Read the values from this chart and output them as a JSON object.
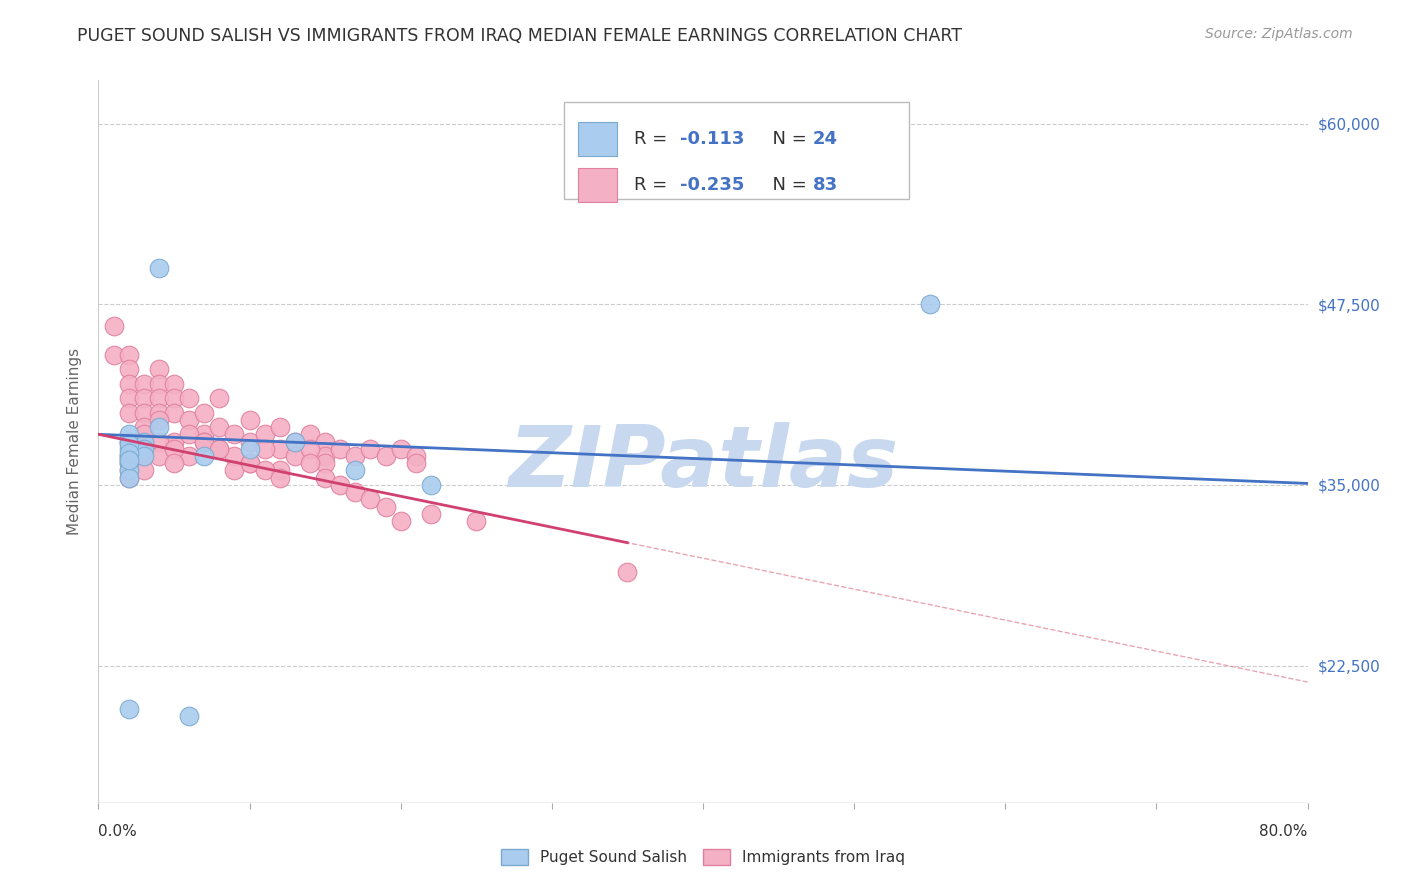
{
  "title": "PUGET SOUND SALISH VS IMMIGRANTS FROM IRAQ MEDIAN FEMALE EARNINGS CORRELATION CHART",
  "source": "Source: ZipAtlas.com",
  "ylabel": "Median Female Earnings",
  "ylim": [
    13000,
    63000
  ],
  "xlim": [
    0.0,
    0.8
  ],
  "ytick_vals": [
    22500,
    35000,
    47500,
    60000
  ],
  "ytick_labels": [
    "$22,500",
    "$35,000",
    "$47,500",
    "$60,000"
  ],
  "series1_label": "Puget Sound Salish",
  "series1_R": "-0.113",
  "series1_N": "24",
  "series1_color": "#aaccee",
  "series1_edge": "#7aaad0",
  "series2_label": "Immigrants from Iraq",
  "series2_R": "-0.235",
  "series2_N": "83",
  "series2_color": "#f4b0c4",
  "series2_edge": "#e080a0",
  "blue_line_color": "#4472c4",
  "pink_line_color": "#d04070",
  "diag_line_color": "#e08090",
  "watermark": "ZIPatlas",
  "watermark_color": "#c8d8ee",
  "background_color": "#ffffff",
  "legend_R_color": "#4472c4",
  "legend_N_color": "#4472c4",
  "series1_x": [
    0.04,
    0.02,
    0.02,
    0.02,
    0.02,
    0.02,
    0.02,
    0.02,
    0.03,
    0.03,
    0.03,
    0.04,
    0.06,
    0.07,
    0.1,
    0.13,
    0.17,
    0.22,
    0.55,
    0.02,
    0.02,
    0.02,
    0.02,
    0.02
  ],
  "series1_y": [
    50000,
    38000,
    37500,
    37000,
    36800,
    36500,
    36000,
    35500,
    38000,
    37500,
    37000,
    39000,
    19000,
    37000,
    37500,
    38000,
    36000,
    35000,
    47500,
    38500,
    37800,
    37200,
    36700,
    19500
  ],
  "series2_x": [
    0.01,
    0.01,
    0.02,
    0.02,
    0.02,
    0.02,
    0.02,
    0.03,
    0.03,
    0.03,
    0.03,
    0.04,
    0.04,
    0.04,
    0.04,
    0.05,
    0.05,
    0.05,
    0.06,
    0.06,
    0.07,
    0.07,
    0.08,
    0.08,
    0.09,
    0.1,
    0.1,
    0.11,
    0.12,
    0.12,
    0.13,
    0.14,
    0.15,
    0.15,
    0.16,
    0.17,
    0.18,
    0.19,
    0.2,
    0.21,
    0.21,
    0.02,
    0.02,
    0.02,
    0.03,
    0.03,
    0.04,
    0.05,
    0.06,
    0.07,
    0.08,
    0.09,
    0.1,
    0.11,
    0.12,
    0.13,
    0.14,
    0.15,
    0.02,
    0.02,
    0.03,
    0.03,
    0.04,
    0.04,
    0.05,
    0.05,
    0.06,
    0.07,
    0.08,
    0.09,
    0.1,
    0.11,
    0.12,
    0.35,
    0.25,
    0.14,
    0.15,
    0.16,
    0.17,
    0.18,
    0.19,
    0.2,
    0.22
  ],
  "series2_y": [
    44000,
    46000,
    44000,
    43000,
    42000,
    41000,
    40000,
    42000,
    41000,
    40000,
    39000,
    43000,
    42000,
    41000,
    40000,
    42000,
    41000,
    40000,
    41000,
    39500,
    40000,
    38500,
    41000,
    39000,
    38500,
    39500,
    38000,
    38500,
    39000,
    37500,
    38000,
    38500,
    38000,
    37000,
    37500,
    37000,
    37500,
    37000,
    37500,
    37000,
    36500,
    38000,
    37000,
    36000,
    38500,
    37500,
    39500,
    38000,
    37000,
    38000,
    37500,
    37000,
    36500,
    37500,
    36000,
    37000,
    37500,
    36500,
    36500,
    35500,
    37000,
    36000,
    38000,
    37000,
    37500,
    36500,
    38500,
    38000,
    37500,
    36000,
    36500,
    36000,
    35500,
    29000,
    32500,
    36500,
    35500,
    35000,
    34500,
    34000,
    33500,
    32500,
    33000
  ]
}
